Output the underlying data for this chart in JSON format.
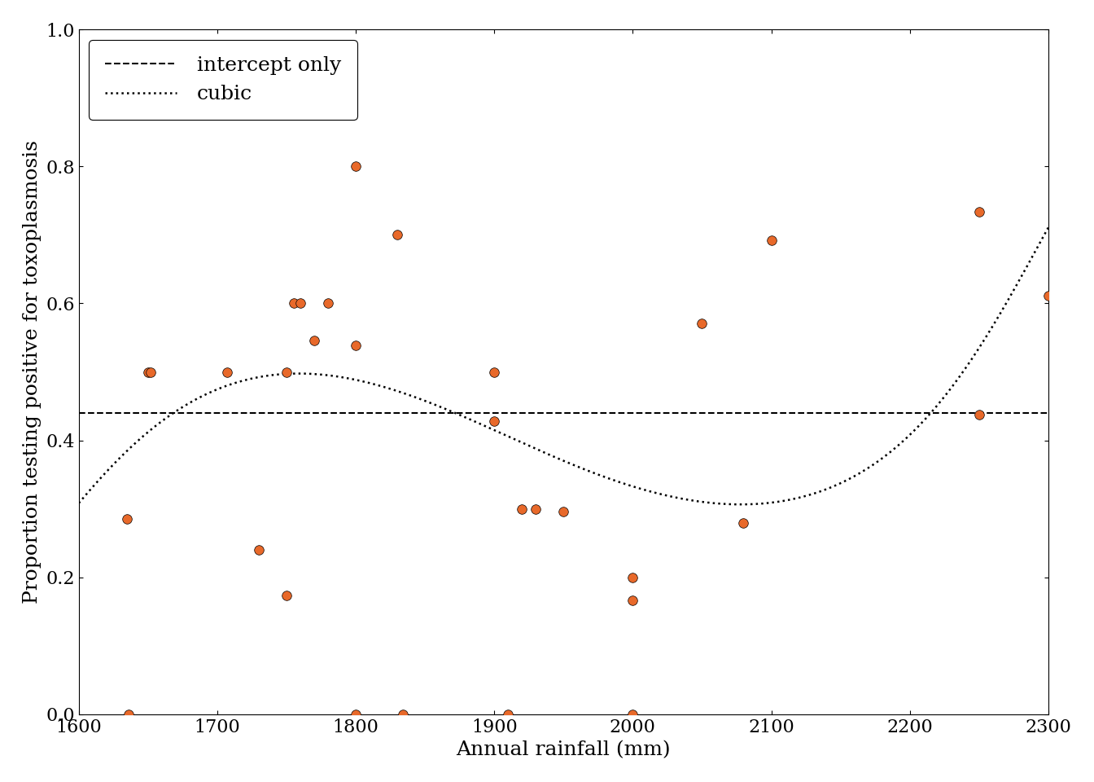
{
  "rainfall": [
    1635,
    1636,
    1650,
    1652,
    1707,
    1730,
    1750,
    1750,
    1755,
    1760,
    1770,
    1780,
    1800,
    1800,
    1800,
    1830,
    1834,
    1900,
    1900,
    1910,
    1920,
    1930,
    1950,
    2000,
    2000,
    2000,
    2050,
    2080,
    2100,
    2250,
    2250,
    2300
  ],
  "positive": [
    2,
    0,
    5,
    5,
    14,
    6,
    4,
    10,
    12,
    15,
    12,
    15,
    20,
    0,
    14,
    7,
    0,
    9,
    10,
    0,
    9,
    9,
    8,
    4,
    4,
    0,
    8,
    12,
    9,
    7,
    11,
    11
  ],
  "total": [
    7,
    1,
    10,
    10,
    28,
    25,
    23,
    20,
    20,
    25,
    22,
    25,
    25,
    1,
    26,
    10,
    1,
    21,
    20,
    2,
    30,
    30,
    27,
    24,
    20,
    1,
    14,
    43,
    13,
    16,
    15,
    18
  ],
  "point_color": "#E8692A",
  "point_edgecolor": "black",
  "point_size": 70,
  "line_color": "black",
  "xlabel": "Annual rainfall (mm)",
  "ylabel": "Proportion testing positive for toxoplasmosis",
  "xlim": [
    1600,
    2300
  ],
  "ylim": [
    0.0,
    1.0
  ],
  "xticks": [
    1600,
    1700,
    1800,
    1900,
    2000,
    2100,
    2200,
    2300
  ],
  "yticks": [
    0.0,
    0.2,
    0.4,
    0.6,
    0.8,
    1.0
  ],
  "legend_loc": "upper left",
  "background_color": "white",
  "axis_fontsize": 18,
  "tick_fontsize": 16,
  "legend_fontsize": 18
}
